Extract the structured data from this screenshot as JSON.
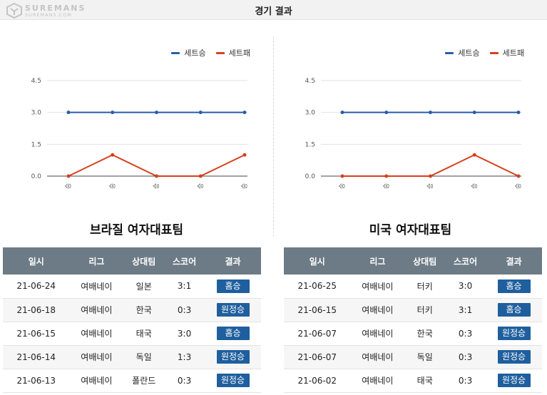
{
  "header": {
    "title": "경기 결과",
    "logo_main": "SUREMANS",
    "logo_sub": "SUREMANS.COM"
  },
  "colors": {
    "win": "#2a5caa",
    "loss": "#d6401d",
    "badge": "#1f5f9e",
    "table_header": "#6d7b86"
  },
  "legend": {
    "win_label": "세트승",
    "loss_label": "세트패"
  },
  "teams": [
    {
      "name": "브라질 여자대표팀",
      "chart_data": {
        "type": "line",
        "categories": [
          "승",
          "승",
          "승",
          "승",
          "승"
        ],
        "series": [
          {
            "name": "세트승",
            "values": [
              3,
              3,
              3,
              3,
              3
            ]
          },
          {
            "name": "세트패",
            "values": [
              0,
              1,
              0,
              0,
              1
            ]
          }
        ],
        "yticks": [
          "0.0",
          "1.5",
          "3.0",
          "4.5"
        ],
        "ylim": [
          0,
          4.5
        ],
        "grid": true,
        "legend": "top-right"
      },
      "table": {
        "columns": [
          "일시",
          "리그",
          "상대팀",
          "스코어",
          "결과"
        ],
        "rows": [
          {
            "date": "21-06-24",
            "league": "여배네이",
            "opponent": "일본",
            "score": "3:1",
            "result": "홈승"
          },
          {
            "date": "21-06-18",
            "league": "여배네이",
            "opponent": "한국",
            "score": "0:3",
            "result": "원정승"
          },
          {
            "date": "21-06-15",
            "league": "여배네이",
            "opponent": "태국",
            "score": "3:0",
            "result": "홈승"
          },
          {
            "date": "21-06-14",
            "league": "여배네이",
            "opponent": "독일",
            "score": "1:3",
            "result": "원정승"
          },
          {
            "date": "21-06-13",
            "league": "여배네이",
            "opponent": "폴란드",
            "score": "0:3",
            "result": "원정승"
          }
        ]
      }
    },
    {
      "name": "미국 여자대표팀",
      "chart_data": {
        "type": "line",
        "categories": [
          "승",
          "승",
          "승",
          "승",
          "승"
        ],
        "series": [
          {
            "name": "세트승",
            "values": [
              3,
              3,
              3,
              3,
              3
            ]
          },
          {
            "name": "세트패",
            "values": [
              0,
              0,
              0,
              1,
              0
            ]
          }
        ],
        "yticks": [
          "0.0",
          "1.5",
          "3.0",
          "4.5"
        ],
        "ylim": [
          0,
          4.5
        ],
        "grid": true,
        "legend": "top-right"
      },
      "table": {
        "columns": [
          "일시",
          "리그",
          "상대팀",
          "스코어",
          "결과"
        ],
        "rows": [
          {
            "date": "21-06-25",
            "league": "여배네이",
            "opponent": "터키",
            "score": "3:0",
            "result": "홈승"
          },
          {
            "date": "21-06-15",
            "league": "여배네이",
            "opponent": "터키",
            "score": "3:1",
            "result": "홈승"
          },
          {
            "date": "21-06-07",
            "league": "여배네이",
            "opponent": "한국",
            "score": "0:3",
            "result": "원정승"
          },
          {
            "date": "21-06-07",
            "league": "여배네이",
            "opponent": "독일",
            "score": "0:3",
            "result": "원정승"
          },
          {
            "date": "21-06-02",
            "league": "여배네이",
            "opponent": "태국",
            "score": "0:3",
            "result": "원정승"
          }
        ]
      }
    }
  ]
}
